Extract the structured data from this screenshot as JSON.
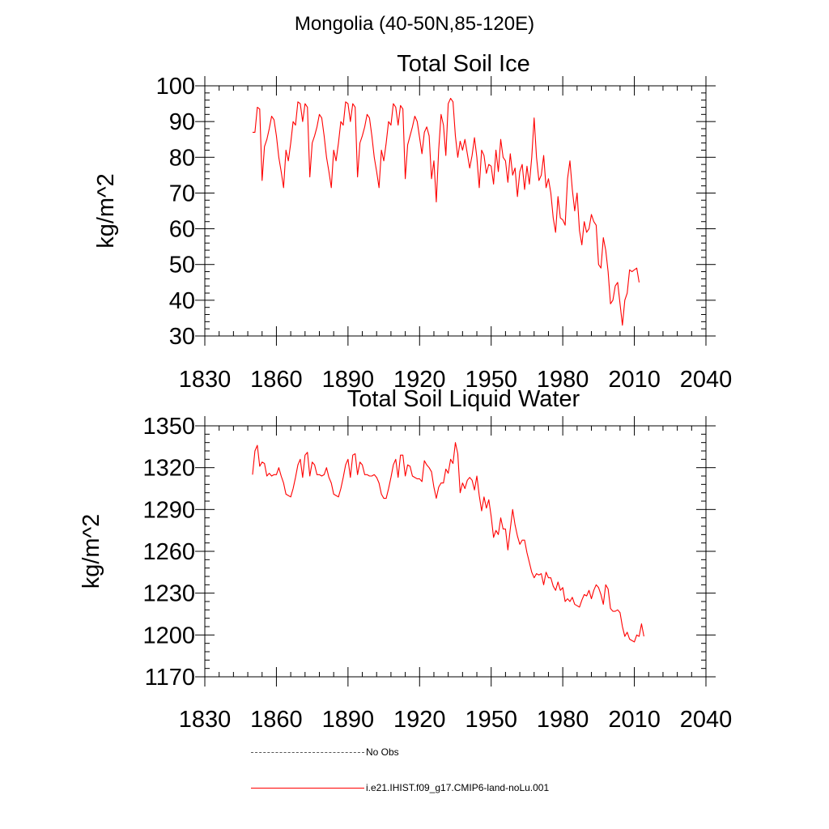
{
  "page": {
    "title": "Mongolia (40-50N,85-120E)"
  },
  "legend": {
    "items": [
      {
        "label": "No Obs",
        "style": "dashed",
        "color": "#555555"
      },
      {
        "label": "i.e21.IHIST.f09_g17.CMIP6-land-noLu.001",
        "style": "solid",
        "color": "#ff0000"
      }
    ]
  },
  "chart_data": [
    {
      "type": "line",
      "title": "Total Soil Ice",
      "ylabel": "kg/m^2",
      "xlabel": "",
      "xlim": [
        1830,
        2040
      ],
      "ylim": [
        30,
        100
      ],
      "x_ticks": [
        1830,
        1860,
        1890,
        1920,
        1950,
        1980,
        2010,
        2040
      ],
      "y_ticks": [
        30,
        40,
        50,
        60,
        70,
        80,
        90,
        100
      ],
      "series": [
        {
          "color": "#ff0000",
          "x_start": 1850,
          "x_step": 1,
          "values": [
            87,
            87,
            94,
            93.5,
            73.5,
            83,
            85,
            88,
            91.5,
            90.5,
            86,
            80,
            76,
            71.5,
            82,
            79,
            84,
            90,
            89,
            95.5,
            95,
            90,
            95,
            94,
            74.5,
            84,
            86,
            88.5,
            92,
            91,
            86,
            80,
            76,
            71.5,
            82,
            79,
            84,
            90,
            89,
            95.5,
            95,
            90,
            95,
            94,
            74.5,
            84,
            86,
            88.5,
            92,
            91,
            86,
            80,
            76,
            71.5,
            82,
            79,
            84,
            90,
            89,
            95,
            94,
            89,
            94.5,
            93.5,
            74,
            83.5,
            86,
            88.5,
            91.5,
            90,
            85.5,
            81,
            87,
            88.5,
            86,
            74,
            79,
            67.5,
            82,
            92,
            89,
            80.5,
            95,
            96.5,
            95.5,
            86,
            80,
            84.5,
            82,
            85,
            81,
            77,
            80.5,
            85.5,
            80,
            71.5,
            82,
            80.5,
            75.5,
            78,
            77.5,
            72.5,
            82,
            76,
            85,
            80,
            79,
            73,
            81,
            75,
            77,
            69,
            76,
            78,
            71,
            77.5,
            72.5,
            80,
            91,
            80,
            73.5,
            75,
            80.5,
            71.5,
            74,
            70,
            63,
            59,
            69,
            63,
            62.5,
            61,
            74,
            79,
            71,
            65,
            70,
            59.5,
            55.5,
            62,
            59,
            60,
            64,
            62,
            61,
            50,
            49,
            57.5,
            54,
            48,
            39,
            40,
            44,
            45,
            39,
            33,
            40,
            42,
            48.5,
            48,
            48.5,
            49,
            45
          ]
        }
      ]
    },
    {
      "type": "line",
      "title": "Total Soil Liquid Water",
      "ylabel": "kg/m^2",
      "xlabel": "",
      "xlim": [
        1830,
        2040
      ],
      "ylim": [
        1170,
        1350
      ],
      "x_ticks": [
        1830,
        1860,
        1890,
        1920,
        1950,
        1980,
        2010,
        2040
      ],
      "y_ticks": [
        1170,
        1200,
        1230,
        1260,
        1290,
        1320,
        1350
      ],
      "series": [
        {
          "color": "#ff0000",
          "x_start": 1850,
          "x_step": 1,
          "values": [
            1315,
            1332,
            1336,
            1321,
            1324,
            1323,
            1314,
            1316,
            1314,
            1315,
            1315,
            1320,
            1314,
            1309,
            1301,
            1300,
            1299,
            1305,
            1313,
            1322,
            1326,
            1313,
            1329,
            1331,
            1314,
            1324,
            1322,
            1315,
            1315,
            1314,
            1315,
            1320,
            1313,
            1309,
            1301,
            1300,
            1299,
            1305,
            1313,
            1322,
            1326,
            1313,
            1329,
            1330,
            1315,
            1324,
            1322,
            1315,
            1315,
            1314,
            1314,
            1315,
            1313,
            1309,
            1301,
            1298,
            1298,
            1305,
            1313,
            1322,
            1326,
            1313,
            1329,
            1329,
            1314,
            1322,
            1321,
            1314,
            1313,
            1312,
            1312,
            1310,
            1325,
            1322,
            1320,
            1317,
            1306,
            1298,
            1306,
            1309,
            1309,
            1319,
            1316,
            1326,
            1323,
            1338,
            1330,
            1302,
            1309,
            1305,
            1311,
            1313,
            1311,
            1304,
            1314,
            1300,
            1289,
            1299,
            1291,
            1297,
            1285,
            1270,
            1275,
            1272,
            1284,
            1276,
            1276,
            1261,
            1276,
            1290,
            1279,
            1271,
            1265,
            1268,
            1268,
            1259,
            1252,
            1245,
            1241,
            1244,
            1243,
            1244,
            1236,
            1245,
            1241,
            1241,
            1235,
            1232,
            1238,
            1232,
            1234,
            1224,
            1226,
            1224,
            1227,
            1222,
            1221,
            1220,
            1225,
            1229,
            1228,
            1232,
            1226,
            1232,
            1236,
            1234,
            1229,
            1222,
            1236,
            1233,
            1219,
            1217,
            1217,
            1218,
            1216,
            1206,
            1199,
            1202,
            1197,
            1196,
            1195,
            1200,
            1199,
            1208,
            1199
          ]
        }
      ]
    }
  ]
}
